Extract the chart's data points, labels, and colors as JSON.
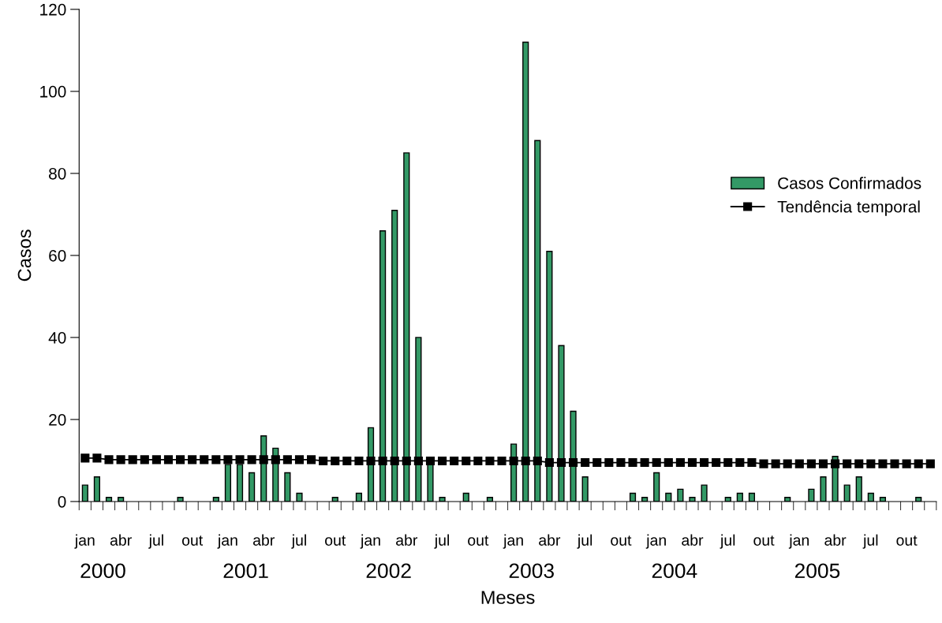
{
  "chart_data": {
    "type": "bar",
    "xlabel": "Meses",
    "ylabel": "Casos",
    "categories": [
      "jan",
      null,
      null,
      "abr",
      null,
      null,
      "jul",
      null,
      null,
      "out",
      null,
      null,
      "jan",
      null,
      null,
      "abr",
      null,
      null,
      "jul",
      null,
      null,
      "out",
      null,
      null,
      "jan",
      null,
      null,
      "abr",
      null,
      null,
      "jul",
      null,
      null,
      "out",
      null,
      null,
      "jan",
      null,
      null,
      "abr",
      null,
      null,
      "jul",
      null,
      null,
      "out",
      null,
      null,
      "jan",
      null,
      null,
      "abr",
      null,
      null,
      "jul",
      null,
      null,
      "out",
      null,
      null,
      "jan",
      null,
      null,
      "abr",
      null,
      null,
      "jul",
      null,
      null,
      "out",
      null,
      null
    ],
    "series": [
      {
        "name": "Casos Confirmados",
        "type": "bar",
        "color": "#339966",
        "values": [
          4,
          6,
          1,
          1,
          0,
          0,
          0,
          0,
          1,
          0,
          0,
          1,
          9,
          9,
          7,
          16,
          13,
          7,
          2,
          0,
          0,
          1,
          0,
          2,
          18,
          66,
          71,
          85,
          40,
          9,
          1,
          0,
          2,
          0,
          1,
          0,
          14,
          112,
          88,
          61,
          38,
          22,
          6,
          0,
          0,
          0,
          2,
          1,
          7,
          2,
          3,
          1,
          4,
          0,
          1,
          2,
          2,
          0,
          0,
          1,
          0,
          3,
          6,
          11,
          4,
          6,
          2,
          1,
          0,
          0,
          1,
          0
        ]
      },
      {
        "name": "Tendência temporal",
        "type": "line",
        "color": "#000000",
        "marker": "square",
        "values": [
          10.6,
          10.6,
          10.2,
          10.2,
          10.2,
          10.2,
          10.2,
          10.2,
          10.2,
          10.2,
          10.2,
          10.2,
          10.2,
          10.2,
          10.2,
          10.2,
          10.2,
          10.2,
          10.2,
          10.2,
          9.9,
          9.9,
          9.9,
          9.9,
          9.9,
          9.9,
          9.9,
          9.9,
          9.9,
          9.9,
          9.9,
          9.9,
          9.9,
          9.9,
          9.9,
          9.9,
          9.9,
          9.9,
          9.9,
          9.5,
          9.5,
          9.5,
          9.5,
          9.5,
          9.5,
          9.5,
          9.5,
          9.5,
          9.5,
          9.5,
          9.5,
          9.5,
          9.5,
          9.5,
          9.5,
          9.5,
          9.5,
          9.2,
          9.2,
          9.2,
          9.2,
          9.2,
          9.2,
          9.2,
          9.2,
          9.2,
          9.2,
          9.2,
          9.2,
          9.2,
          9.2,
          9.2
        ]
      }
    ],
    "ylim": [
      0,
      120
    ],
    "yticks": [
      0,
      20,
      40,
      60,
      80,
      100,
      120
    ],
    "annotations": [
      "2000",
      "2001",
      "2002",
      "2003",
      "2004",
      "2005"
    ],
    "legend": "right",
    "grid": false
  }
}
